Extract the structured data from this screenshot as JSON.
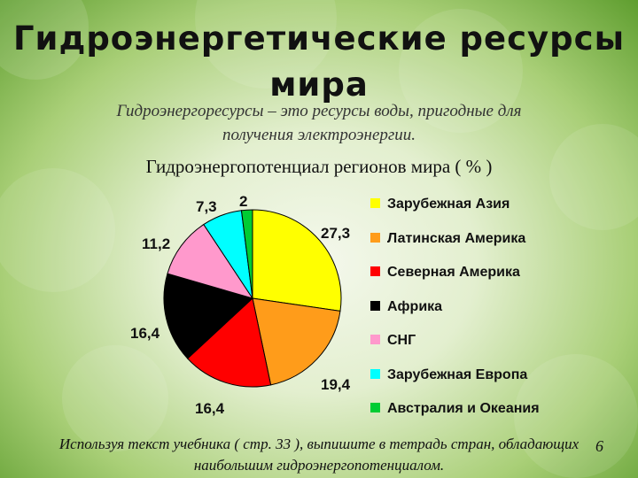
{
  "slide": {
    "title": "Гидроэнергетические ресурсы мира",
    "subtitle": "Гидроэнергоресурсы – это ресурсы воды, пригодные для получения электроэнергии.",
    "footer": "Используя текст учебника ( стр. 33 ), выпишите в тетрадь стран, обладающих наибольшим гидроэнергопотенциалом.",
    "page_number": "6"
  },
  "chart_data": {
    "type": "pie",
    "title": "Гидроэнергопотенциал регионов мира ( % )",
    "labels": [
      "Зарубежная Азия",
      "Латинская Америка",
      "Северная Америка",
      "Африка",
      "СНГ",
      "Зарубежная Европа",
      "Австралия и Океания"
    ],
    "values": [
      27.3,
      19.4,
      16.4,
      16.4,
      11.2,
      7.3,
      2
    ],
    "value_labels": [
      "27,3",
      "19,4",
      "16,4",
      "16,4",
      "11,2",
      "7,3",
      "2"
    ],
    "colors": [
      "#ffff00",
      "#ff9c1a",
      "#ff0000",
      "#000000",
      "#ff99cc",
      "#00ffff",
      "#00cc33"
    ],
    "legend_position": "right"
  }
}
